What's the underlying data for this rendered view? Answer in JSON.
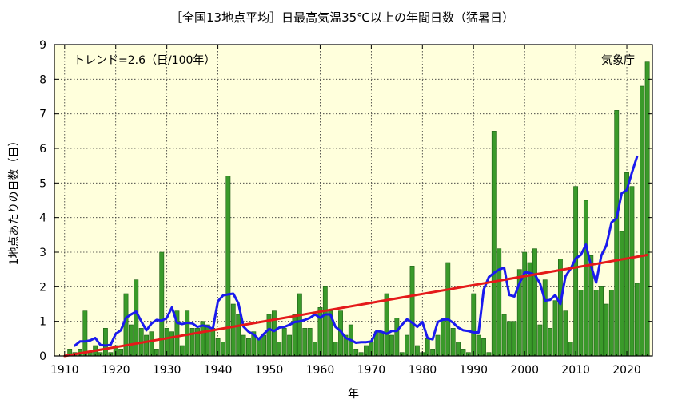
{
  "chart_data": {
    "type": "bar",
    "title": "［全国13地点平均］日最高気温35℃以上の年間日数（猛暑日）",
    "xlabel": "年",
    "ylabel": "1地点あたりの日数（日）",
    "xlim": [
      1908,
      2025
    ],
    "ylim": [
      0,
      9
    ],
    "x_ticks": [
      1910,
      1920,
      1930,
      1940,
      1950,
      1960,
      1970,
      1980,
      1990,
      2000,
      2010,
      2020
    ],
    "y_ticks": [
      0,
      1,
      2,
      3,
      4,
      5,
      6,
      7,
      8,
      9
    ],
    "grid": true,
    "trend_label": "トレンド=2.6（日/100年）",
    "source_label": "気象庁",
    "colors": {
      "plot_bg": "#ffffdc",
      "bar_fill": "#3a9a2a",
      "bar_stroke": "#1c5e14",
      "moving_average": "#1a1aee",
      "trend": "#e41a1a"
    },
    "bars": {
      "x": [
        1910,
        1911,
        1912,
        1913,
        1914,
        1915,
        1916,
        1917,
        1918,
        1919,
        1920,
        1921,
        1922,
        1923,
        1924,
        1925,
        1926,
        1927,
        1928,
        1929,
        1930,
        1931,
        1932,
        1933,
        1934,
        1935,
        1936,
        1937,
        1938,
        1939,
        1940,
        1941,
        1942,
        1943,
        1944,
        1945,
        1946,
        1947,
        1948,
        1949,
        1950,
        1951,
        1952,
        1953,
        1954,
        1955,
        1956,
        1957,
        1958,
        1959,
        1960,
        1961,
        1962,
        1963,
        1964,
        1965,
        1966,
        1967,
        1968,
        1969,
        1970,
        1971,
        1972,
        1973,
        1974,
        1975,
        1976,
        1977,
        1978,
        1979,
        1980,
        1981,
        1982,
        1983,
        1984,
        1985,
        1986,
        1987,
        1988,
        1989,
        1990,
        1991,
        1992,
        1993,
        1994,
        1995,
        1996,
        1997,
        1998,
        1999,
        2000,
        2001,
        2002,
        2003,
        2004,
        2005,
        2006,
        2007,
        2008,
        2009,
        2010,
        2011,
        2012,
        2013,
        2014,
        2015,
        2016,
        2017,
        2018,
        2019,
        2020,
        2021,
        2022,
        2023,
        2024
      ],
      "values": [
        0,
        0.2,
        0.1,
        0.2,
        1.3,
        0.1,
        0.3,
        0.1,
        0.8,
        0.1,
        0.3,
        0.2,
        1.8,
        0.9,
        2.2,
        0.8,
        0.6,
        0.7,
        0.2,
        3.0,
        0.8,
        0.7,
        1.3,
        0.3,
        1.3,
        0.8,
        0.8,
        1.0,
        0.9,
        0.8,
        0.5,
        0.4,
        5.2,
        1.5,
        1.2,
        0.6,
        0.5,
        0.7,
        0.5,
        0.6,
        1.2,
        1.3,
        0.4,
        0.8,
        0.6,
        1.2,
        1.8,
        0.8,
        0.8,
        0.4,
        1.4,
        2.0,
        1.3,
        0.4,
        1.3,
        0.6,
        0.9,
        0.2,
        0.1,
        0.3,
        0.4,
        0.7,
        0.7,
        1.8,
        0.6,
        1.1,
        0.1,
        0.6,
        2.6,
        0.3,
        0.1,
        0.5,
        0.2,
        0.6,
        1.1,
        2.7,
        0.8,
        0.4,
        0.2,
        0.1,
        1.8,
        0.6,
        0.5,
        0.1,
        6.5,
        3.1,
        1.2,
        1.0,
        1.0,
        2.5,
        3.0,
        2.7,
        3.1,
        0.9,
        2.2,
        0.8,
        1.6,
        2.8,
        1.3,
        0.4,
        4.9,
        1.9,
        4.5,
        2.9,
        1.9,
        2.0,
        1.5,
        1.9,
        7.1,
        3.6,
        5.3,
        4.9,
        2.1,
        7.8,
        8.5
      ]
    },
    "series": [
      {
        "kind": "moving-average",
        "x": [
          1912,
          1913,
          1914,
          1915,
          1916,
          1917,
          1918,
          1919,
          1920,
          1921,
          1922,
          1923,
          1924,
          1925,
          1926,
          1927,
          1928,
          1929,
          1930,
          1931,
          1932,
          1933,
          1934,
          1935,
          1936,
          1937,
          1938,
          1939,
          1940,
          1941,
          1942,
          1943,
          1944,
          1945,
          1946,
          1947,
          1948,
          1949,
          1950,
          1951,
          1952,
          1953,
          1954,
          1955,
          1956,
          1957,
          1958,
          1959,
          1960,
          1961,
          1962,
          1963,
          1964,
          1965,
          1966,
          1967,
          1968,
          1969,
          1970,
          1971,
          1972,
          1973,
          1974,
          1975,
          1976,
          1977,
          1978,
          1979,
          1980,
          1981,
          1982,
          1983,
          1984,
          1985,
          1986,
          1987,
          1988,
          1989,
          1990,
          1991,
          1992,
          1993,
          1994,
          1995,
          1996,
          1997,
          1998,
          1999,
          2000,
          2001,
          2002,
          2003,
          2004,
          2005,
          2006,
          2007,
          2008,
          2009,
          2010,
          2011,
          2012,
          2013,
          2014,
          2015,
          2016,
          2017,
          2018,
          2019,
          2020,
          2021,
          2022
        ],
        "values": [
          0.3,
          0.42,
          0.42,
          0.45,
          0.52,
          0.32,
          0.3,
          0.32,
          0.64,
          0.74,
          1.1,
          1.2,
          1.28,
          1.0,
          0.74,
          0.94,
          1.04,
          1.02,
          1.1,
          1.4,
          0.96,
          0.92,
          0.96,
          0.94,
          0.84,
          0.88,
          0.85,
          0.78,
          1.58,
          1.75,
          1.78,
          1.8,
          1.52,
          0.85,
          0.7,
          0.62,
          0.48,
          0.64,
          0.78,
          0.72,
          0.82,
          0.84,
          0.9,
          0.98,
          1.0,
          1.04,
          1.1,
          1.2,
          1.1,
          1.2,
          1.2,
          0.84,
          0.72,
          0.52,
          0.46,
          0.38,
          0.4,
          0.4,
          0.42,
          0.72,
          0.7,
          0.64,
          0.72,
          0.72,
          0.9,
          1.06,
          0.96,
          0.84,
          0.98,
          0.52,
          0.48,
          0.98,
          1.05,
          1.06,
          0.96,
          0.82,
          0.74,
          0.72,
          0.68,
          0.68,
          1.92,
          2.28,
          2.4,
          2.5,
          2.55,
          1.76,
          1.72,
          2.1,
          2.42,
          2.4,
          2.35,
          2.1,
          1.6,
          1.62,
          1.76,
          1.5,
          2.3,
          2.52,
          2.82,
          2.92,
          3.22,
          2.6,
          2.12,
          2.9,
          3.2,
          3.86,
          3.98,
          4.7,
          4.8,
          5.3,
          5.76
        ]
      },
      {
        "kind": "trend",
        "x": [
          1910,
          2024
        ],
        "values": [
          0.0,
          2.92
        ]
      }
    ]
  }
}
